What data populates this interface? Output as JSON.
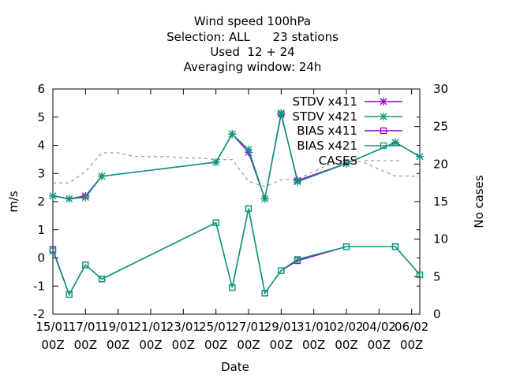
{
  "chart_data": {
    "type": "line",
    "title_lines": [
      "Wind speed 100hPa",
      "Selection: ALL      23 stations",
      "Used  12 + 24",
      "Averaging window: 24h"
    ],
    "xlabel": "Date",
    "ylabel": "m/s",
    "y2label": "No cases",
    "ylim": [
      -2,
      6
    ],
    "y2lim": [
      0,
      30
    ],
    "yticks": [
      -2,
      -1,
      0,
      1,
      2,
      3,
      4,
      5,
      6
    ],
    "y2ticks": [
      0,
      5,
      10,
      15,
      20,
      25,
      30
    ],
    "xlim": [
      0,
      22.5
    ],
    "xticks": [
      {
        "x": 0,
        "date": "15/01",
        "time": "00Z"
      },
      {
        "x": 2,
        "date": "17/01",
        "time": "00Z"
      },
      {
        "x": 4,
        "date": "19/01",
        "time": "00Z"
      },
      {
        "x": 6,
        "date": "21/01",
        "time": "00Z"
      },
      {
        "x": 8,
        "date": "23/01",
        "time": "00Z"
      },
      {
        "x": 10,
        "date": "25/01",
        "time": "00Z"
      },
      {
        "x": 12,
        "date": "27/01",
        "time": "00Z"
      },
      {
        "x": 14,
        "date": "29/01",
        "time": "00Z"
      },
      {
        "x": 16,
        "date": "31/01",
        "time": "00Z"
      },
      {
        "x": 18,
        "date": "02/02",
        "time": "00Z"
      },
      {
        "x": 20,
        "date": "04/02",
        "time": "00Z"
      },
      {
        "x": 22,
        "date": "06/02",
        "time": "00Z"
      }
    ],
    "legend_position": "top-right",
    "series": [
      {
        "name": "STDV x411",
        "color": "#9400d3",
        "marker": "star",
        "axis": "y",
        "x": [
          0,
          1,
          2,
          3,
          10,
          11,
          12,
          13,
          14,
          15,
          18,
          21,
          22.5
        ],
        "y": [
          2.2,
          2.1,
          2.2,
          2.9,
          3.4,
          4.4,
          3.75,
          2.1,
          5.1,
          2.75,
          3.35,
          4.1,
          3.6
        ]
      },
      {
        "name": "STDV x421",
        "color": "#009e73",
        "marker": "star",
        "axis": "y",
        "x": [
          0,
          1,
          2,
          3,
          10,
          11,
          12,
          13,
          14,
          15,
          18,
          21,
          22.5
        ],
        "y": [
          2.2,
          2.1,
          2.15,
          2.9,
          3.4,
          4.4,
          3.85,
          2.1,
          5.15,
          2.7,
          3.35,
          4.1,
          3.6
        ]
      },
      {
        "name": "BIAS x411",
        "color": "#9400d3",
        "marker": "square",
        "axis": "y",
        "x": [
          0,
          1,
          2,
          3,
          10,
          11,
          12,
          13,
          14,
          15,
          18,
          21,
          22.5
        ],
        "y": [
          0.3,
          -1.3,
          -0.25,
          -0.75,
          1.25,
          -1.05,
          1.75,
          -1.25,
          -0.45,
          -0.1,
          0.4,
          0.4,
          -0.6
        ]
      },
      {
        "name": "BIAS x421",
        "color": "#009e73",
        "marker": "square",
        "axis": "y",
        "x": [
          0,
          1,
          2,
          3,
          10,
          11,
          12,
          13,
          14,
          15,
          18,
          21,
          22.5
        ],
        "y": [
          0.25,
          -1.3,
          -0.25,
          -0.75,
          1.25,
          -1.05,
          1.75,
          -1.25,
          -0.45,
          -0.05,
          0.4,
          0.4,
          -0.6
        ]
      },
      {
        "name": "CASES",
        "color": "#a0a0a0",
        "dashed": true,
        "axis": "y2",
        "x": [
          0,
          1,
          2,
          3,
          4,
          5,
          6,
          7,
          8,
          9,
          10,
          11,
          12,
          13,
          14,
          15,
          16,
          17,
          18,
          19,
          20,
          21,
          22.5
        ],
        "y": [
          17.5,
          17.5,
          19,
          21.5,
          21.5,
          21,
          21,
          21,
          20.8,
          20.8,
          20.6,
          20.6,
          17.7,
          17,
          17.9,
          18,
          19,
          20,
          20.5,
          20.3,
          19.3,
          18.4,
          18.4
        ]
      }
    ]
  }
}
